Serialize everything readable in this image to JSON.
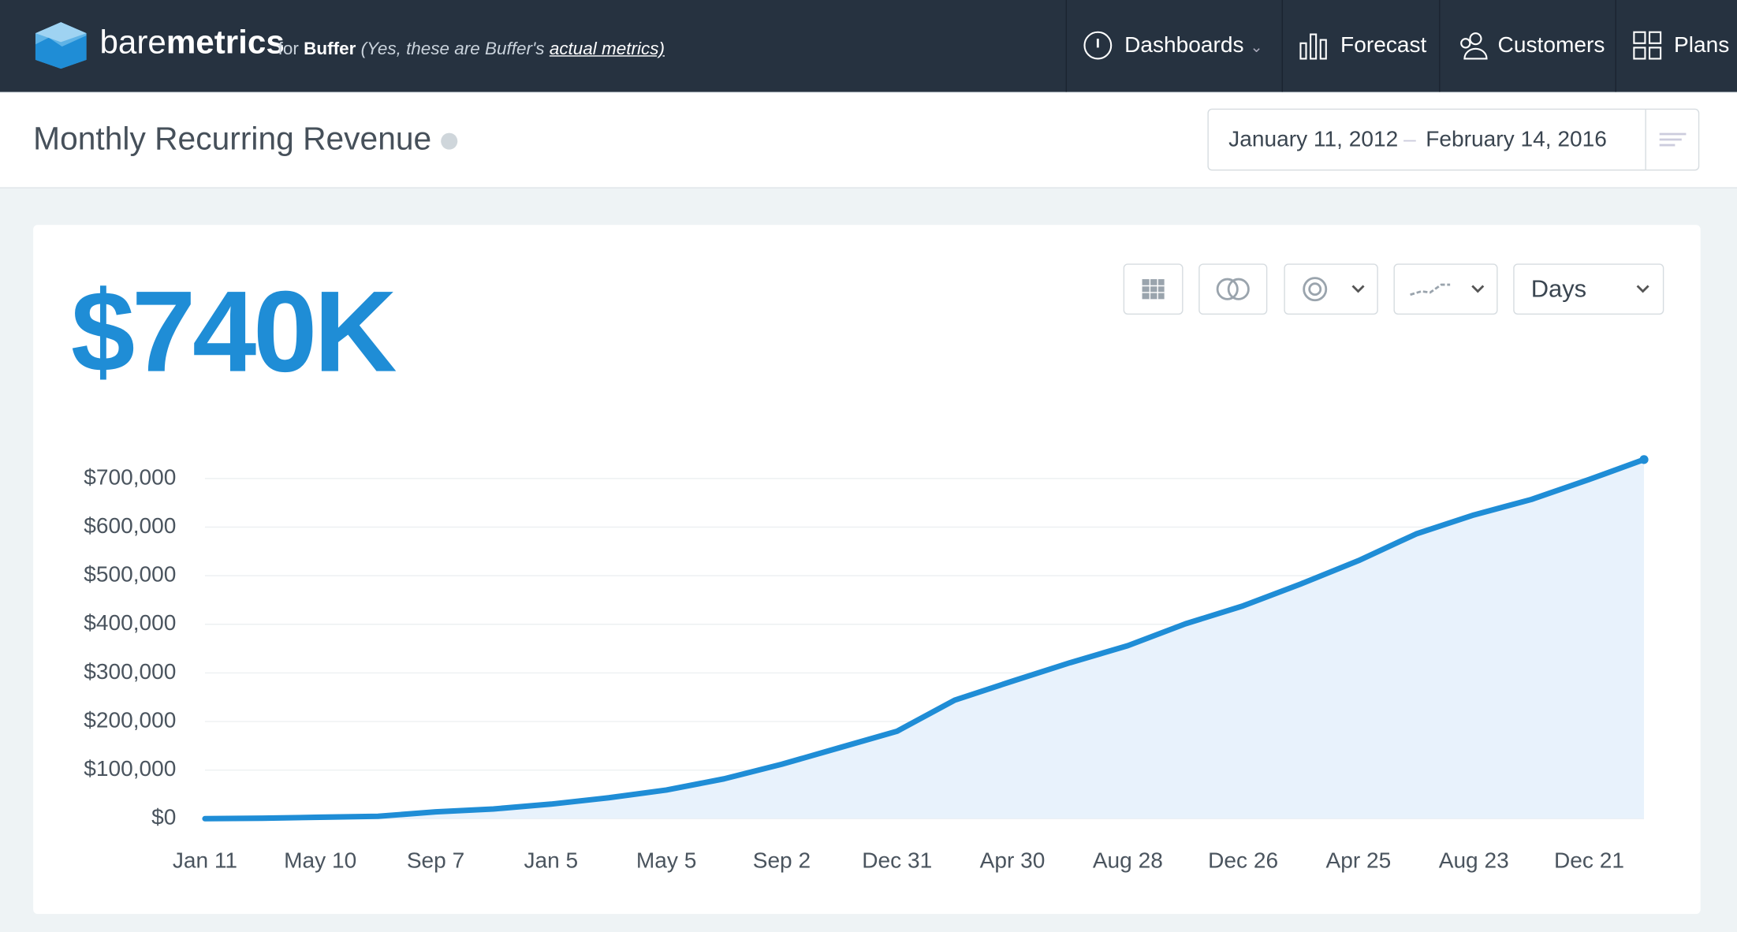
{
  "header": {
    "brand_light": "bare",
    "brand_bold": "metrics",
    "for": "for",
    "company": "Buffer",
    "note": "(Yes, these are Buffer's",
    "note_link": "actual metrics)"
  },
  "nav": [
    "Dashboards",
    "Forecast",
    "Customers",
    "Plans"
  ],
  "page": {
    "title": "Monthly Recurring Revenue",
    "date_start": "January 11, 2012",
    "date_end": "February 14, 2016"
  },
  "controls": {
    "interval": "Days"
  },
  "headline": "$740K",
  "chart_data": {
    "type": "line",
    "categories": [
      "Jan 11",
      null,
      "May 10",
      null,
      "Sep 7",
      null,
      "Jan 5",
      null,
      "May 5",
      null,
      "Sep 2",
      null,
      "Dec 31",
      null,
      "Apr 30",
      null,
      "Aug 28",
      null,
      "Dec 26",
      null,
      "Apr 25",
      null,
      "Aug 23",
      null,
      "Dec 21",
      null
    ],
    "series": [
      {
        "color": "#1f8dd6",
        "values": [
          0,
          1000,
          3000,
          5000,
          14000,
          20000,
          30000,
          43000,
          59000,
          82000,
          112000,
          146000,
          180000,
          244000,
          283000,
          321000,
          356000,
          401000,
          438000,
          483000,
          531000,
          586000,
          625000,
          657000,
          698000,
          739000
        ]
      }
    ],
    "ylim": [
      0,
      750000
    ],
    "yticks": [
      {
        "value": 0,
        "label": "$0"
      },
      {
        "value": 100000,
        "label": "$100,000"
      },
      {
        "value": 200000,
        "label": "$200,000"
      },
      {
        "value": 300000,
        "label": "$300,000"
      },
      {
        "value": 400000,
        "label": "$400,000"
      },
      {
        "value": 500000,
        "label": "$500,000"
      },
      {
        "value": 600000,
        "label": "$600,000"
      },
      {
        "value": 700000,
        "label": "$700,000"
      }
    ],
    "grid": true,
    "area": true
  }
}
